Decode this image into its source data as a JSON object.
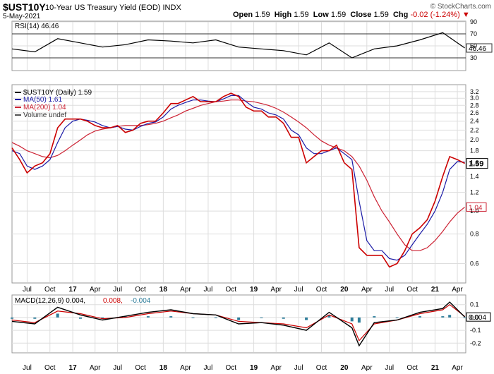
{
  "header": {
    "symbol": "$UST10Y",
    "name": "10-Year US Treasury Yield (EOD)",
    "exchange": "INDX",
    "date": "5-May-2021",
    "open_label": "Open",
    "open": "1.59",
    "high_label": "High",
    "high": "1.59",
    "low_label": "Low",
    "low": "1.59",
    "close_label": "Close",
    "close": "1.59",
    "chg_label": "Chg",
    "chg": "-0.02 (-1.24%)",
    "chg_arrow": "▼",
    "brand": "© StockCharts.com"
  },
  "colors": {
    "price": "#cc0000",
    "ma50": "#1a1aa6",
    "ma200": "#cc2233",
    "macd": "#000000",
    "signal": "#cc0000",
    "histogram": "#2e7d9a",
    "rsi_fill": "#888888",
    "grid": "#dddddd"
  },
  "chart_data": [
    {
      "type": "line",
      "panel": "rsi",
      "legend": "RSI(14) 46.46",
      "ylim": [
        10,
        90
      ],
      "yticks": [
        "90",
        "70",
        "50",
        "30"
      ],
      "reference_lines": [
        70,
        30
      ],
      "last_value_label": "46.46",
      "x": [
        "2016-05",
        "2016-08",
        "2016-11",
        "2017-02",
        "2017-05",
        "2017-08",
        "2017-11",
        "2018-02",
        "2018-05",
        "2018-08",
        "2018-11",
        "2019-02",
        "2019-05",
        "2019-08",
        "2019-11",
        "2020-02",
        "2020-05",
        "2020-08",
        "2020-11",
        "2021-02",
        "2021-05"
      ],
      "values": [
        45,
        40,
        62,
        55,
        48,
        52,
        60,
        58,
        55,
        60,
        48,
        45,
        42,
        35,
        55,
        30,
        45,
        50,
        60,
        72,
        46.46
      ]
    },
    {
      "type": "line",
      "panel": "price",
      "title_legend": "$UST10Y (Daily) 1.59",
      "legend": [
        "MA(50) 1.61",
        "MA(200) 1.04",
        "Volume undef"
      ],
      "scale": "log",
      "ylim": [
        0.5,
        3.4
      ],
      "yticks": [
        "3.2",
        "3.0",
        "2.8",
        "2.6",
        "2.4",
        "2.2",
        "2.0",
        "1.8",
        "1.6",
        "1.4",
        "1.2",
        "1.0",
        "0.8",
        "0.6"
      ],
      "last_value_labels": {
        "price": "1.59",
        "ma200": "1.04"
      },
      "x": [
        "2016-05",
        "2016-06",
        "2016-07",
        "2016-08",
        "2016-09",
        "2016-10",
        "2016-11",
        "2016-12",
        "2017-01",
        "2017-02",
        "2017-03",
        "2017-04",
        "2017-05",
        "2017-06",
        "2017-07",
        "2017-08",
        "2017-09",
        "2017-10",
        "2017-11",
        "2017-12",
        "2018-01",
        "2018-02",
        "2018-03",
        "2018-04",
        "2018-05",
        "2018-06",
        "2018-07",
        "2018-08",
        "2018-09",
        "2018-10",
        "2018-11",
        "2018-12",
        "2019-01",
        "2019-02",
        "2019-03",
        "2019-04",
        "2019-05",
        "2019-06",
        "2019-07",
        "2019-08",
        "2019-09",
        "2019-10",
        "2019-11",
        "2019-12",
        "2020-01",
        "2020-02",
        "2020-03",
        "2020-04",
        "2020-05",
        "2020-06",
        "2020-07",
        "2020-08",
        "2020-09",
        "2020-10",
        "2020-11",
        "2020-12",
        "2021-01",
        "2021-02",
        "2021-03",
        "2021-04",
        "2021-05"
      ],
      "series": [
        {
          "name": "$UST10Y (Daily)",
          "values": [
            1.85,
            1.65,
            1.45,
            1.55,
            1.6,
            1.75,
            2.25,
            2.45,
            2.45,
            2.45,
            2.4,
            2.3,
            2.25,
            2.25,
            2.3,
            2.15,
            2.2,
            2.35,
            2.4,
            2.4,
            2.6,
            2.85,
            2.85,
            2.95,
            3.05,
            2.9,
            2.9,
            2.9,
            3.05,
            3.15,
            3.05,
            2.75,
            2.65,
            2.65,
            2.5,
            2.5,
            2.35,
            2.05,
            2.05,
            1.6,
            1.7,
            1.8,
            1.8,
            1.9,
            1.6,
            1.5,
            0.7,
            0.65,
            0.65,
            0.65,
            0.58,
            0.6,
            0.68,
            0.8,
            0.85,
            0.92,
            1.1,
            1.4,
            1.7,
            1.65,
            1.59
          ]
        },
        {
          "name": "MA(50)",
          "values": [
            1.8,
            1.75,
            1.55,
            1.5,
            1.55,
            1.65,
            1.95,
            2.25,
            2.4,
            2.45,
            2.42,
            2.38,
            2.3,
            2.25,
            2.28,
            2.22,
            2.2,
            2.28,
            2.35,
            2.38,
            2.5,
            2.7,
            2.8,
            2.88,
            2.95,
            2.95,
            2.92,
            2.9,
            2.98,
            3.08,
            3.08,
            2.9,
            2.75,
            2.7,
            2.6,
            2.55,
            2.45,
            2.2,
            2.1,
            1.85,
            1.75,
            1.75,
            1.8,
            1.85,
            1.75,
            1.65,
            1.1,
            0.75,
            0.68,
            0.68,
            0.63,
            0.62,
            0.65,
            0.72,
            0.8,
            0.88,
            1.0,
            1.2,
            1.5,
            1.62,
            1.61
          ]
        },
        {
          "name": "MA(200)",
          "values": [
            1.95,
            1.88,
            1.8,
            1.75,
            1.7,
            1.68,
            1.72,
            1.8,
            1.9,
            2.0,
            2.1,
            2.18,
            2.22,
            2.25,
            2.28,
            2.3,
            2.3,
            2.3,
            2.32,
            2.35,
            2.4,
            2.48,
            2.55,
            2.65,
            2.72,
            2.8,
            2.85,
            2.9,
            2.92,
            2.95,
            2.95,
            2.92,
            2.9,
            2.85,
            2.8,
            2.72,
            2.62,
            2.5,
            2.38,
            2.25,
            2.1,
            1.98,
            1.9,
            1.85,
            1.8,
            1.7,
            1.55,
            1.35,
            1.15,
            1.0,
            0.9,
            0.8,
            0.72,
            0.68,
            0.68,
            0.7,
            0.75,
            0.82,
            0.9,
            0.98,
            1.04
          ]
        }
      ]
    },
    {
      "type": "line",
      "panel": "macd",
      "legend": "MACD(12,26,9) 0.004, 0.008, -0.004",
      "legend_parts": [
        "MACD(12,26,9) 0.004,",
        "0.008,",
        "-0.004"
      ],
      "ylim": [
        -0.27,
        0.17
      ],
      "yticks": [
        "0.1",
        "0.0",
        "-0.1",
        "-0.2"
      ],
      "last_value_label": "0.004",
      "x": [
        "2016-05",
        "2016-08",
        "2016-11",
        "2017-02",
        "2017-05",
        "2017-08",
        "2017-11",
        "2018-02",
        "2018-05",
        "2018-08",
        "2018-11",
        "2019-02",
        "2019-05",
        "2019-08",
        "2019-11",
        "2020-02",
        "2020-03",
        "2020-05",
        "2020-08",
        "2020-11",
        "2021-02",
        "2021-03",
        "2021-05"
      ],
      "series": [
        {
          "name": "MACD",
          "values": [
            -0.03,
            -0.05,
            0.08,
            0.02,
            -0.02,
            0.01,
            0.04,
            0.06,
            0.03,
            0.02,
            -0.05,
            -0.04,
            -0.06,
            -0.1,
            0.04,
            -0.08,
            -0.22,
            -0.04,
            -0.02,
            0.04,
            0.07,
            0.12,
            0.004
          ]
        },
        {
          "name": "Signal",
          "values": [
            -0.02,
            -0.04,
            0.05,
            0.03,
            -0.01,
            0.0,
            0.03,
            0.05,
            0.03,
            0.02,
            -0.03,
            -0.04,
            -0.05,
            -0.08,
            0.02,
            -0.05,
            -0.18,
            -0.05,
            -0.02,
            0.03,
            0.06,
            0.1,
            0.008
          ]
        },
        {
          "name": "Histogram",
          "values": [
            -0.01,
            -0.01,
            0.03,
            -0.01,
            -0.01,
            0.01,
            0.01,
            0.01,
            0.0,
            0.0,
            -0.02,
            0.0,
            -0.01,
            -0.02,
            0.02,
            -0.03,
            -0.04,
            0.01,
            0.0,
            0.01,
            0.01,
            0.02,
            -0.004
          ]
        }
      ]
    }
  ],
  "xaxis": {
    "labels": [
      "Jul",
      "Oct",
      "17",
      "Apr",
      "Jul",
      "Oct",
      "18",
      "Apr",
      "Jul",
      "Oct",
      "19",
      "Apr",
      "Jul",
      "Oct",
      "20",
      "Apr",
      "Jul",
      "Oct",
      "21",
      "Apr"
    ],
    "dates": [
      "2016-07",
      "2016-10",
      "2017-01",
      "2017-04",
      "2017-07",
      "2017-10",
      "2018-01",
      "2018-04",
      "2018-07",
      "2018-10",
      "2019-01",
      "2019-04",
      "2019-07",
      "2019-10",
      "2020-01",
      "2020-04",
      "2020-07",
      "2020-10",
      "2021-01",
      "2021-04"
    ]
  }
}
